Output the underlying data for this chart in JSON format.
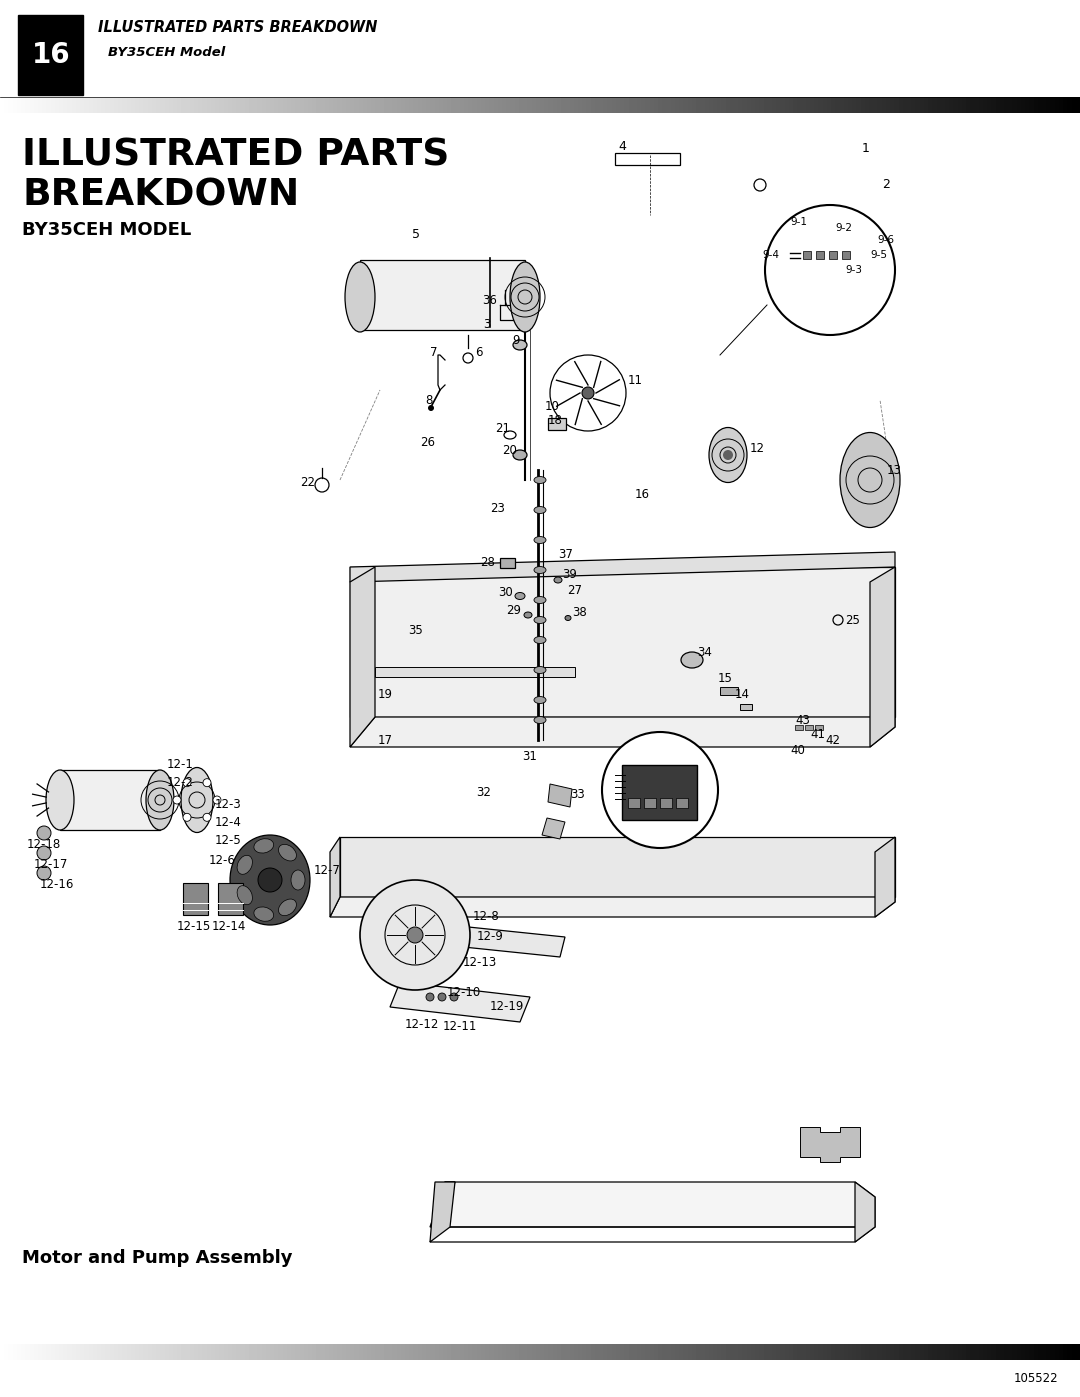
{
  "page_number": "16",
  "header_title": "ILLUSTRATED PARTS BREAKDOWN",
  "header_subtitle": "BY35CEH Model",
  "main_title_line1": "ILLUSTRATED PARTS",
  "main_title_line2": "BREAKDOWN",
  "model_label": "BY35CEH MODEL",
  "section_label": "Motor and Pump Assembly",
  "footer_number": "105522",
  "bg_color": "#ffffff",
  "header_bg": "#000000",
  "top_bar_gradient": "black_to_gray",
  "bottom_bar_gradient": "black_to_gray"
}
